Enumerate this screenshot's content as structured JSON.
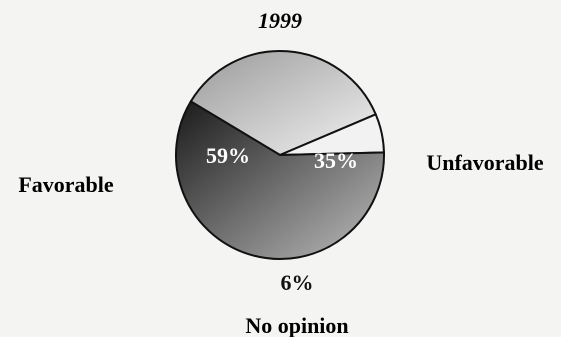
{
  "chart_data": {
    "type": "pie",
    "title": "1999",
    "slices": [
      {
        "label": "Favorable",
        "value": 59,
        "value_label": "59%",
        "color": "#5a5a5a"
      },
      {
        "label": "Unfavorable",
        "value": 35,
        "value_label": "35%",
        "color": "#d2d2d2"
      },
      {
        "label": "No opinion",
        "value": 6,
        "value_label": "6%",
        "color": "#ececec"
      }
    ]
  },
  "colors": {
    "background": "#f4f4f2",
    "outline": "#111111",
    "favorable_dark": "#1a1a1a",
    "favorable_light": "#bdbdbd",
    "unfavorable_dark": "#9a9a9a",
    "unfavorable_light": "#f2f2f2"
  }
}
